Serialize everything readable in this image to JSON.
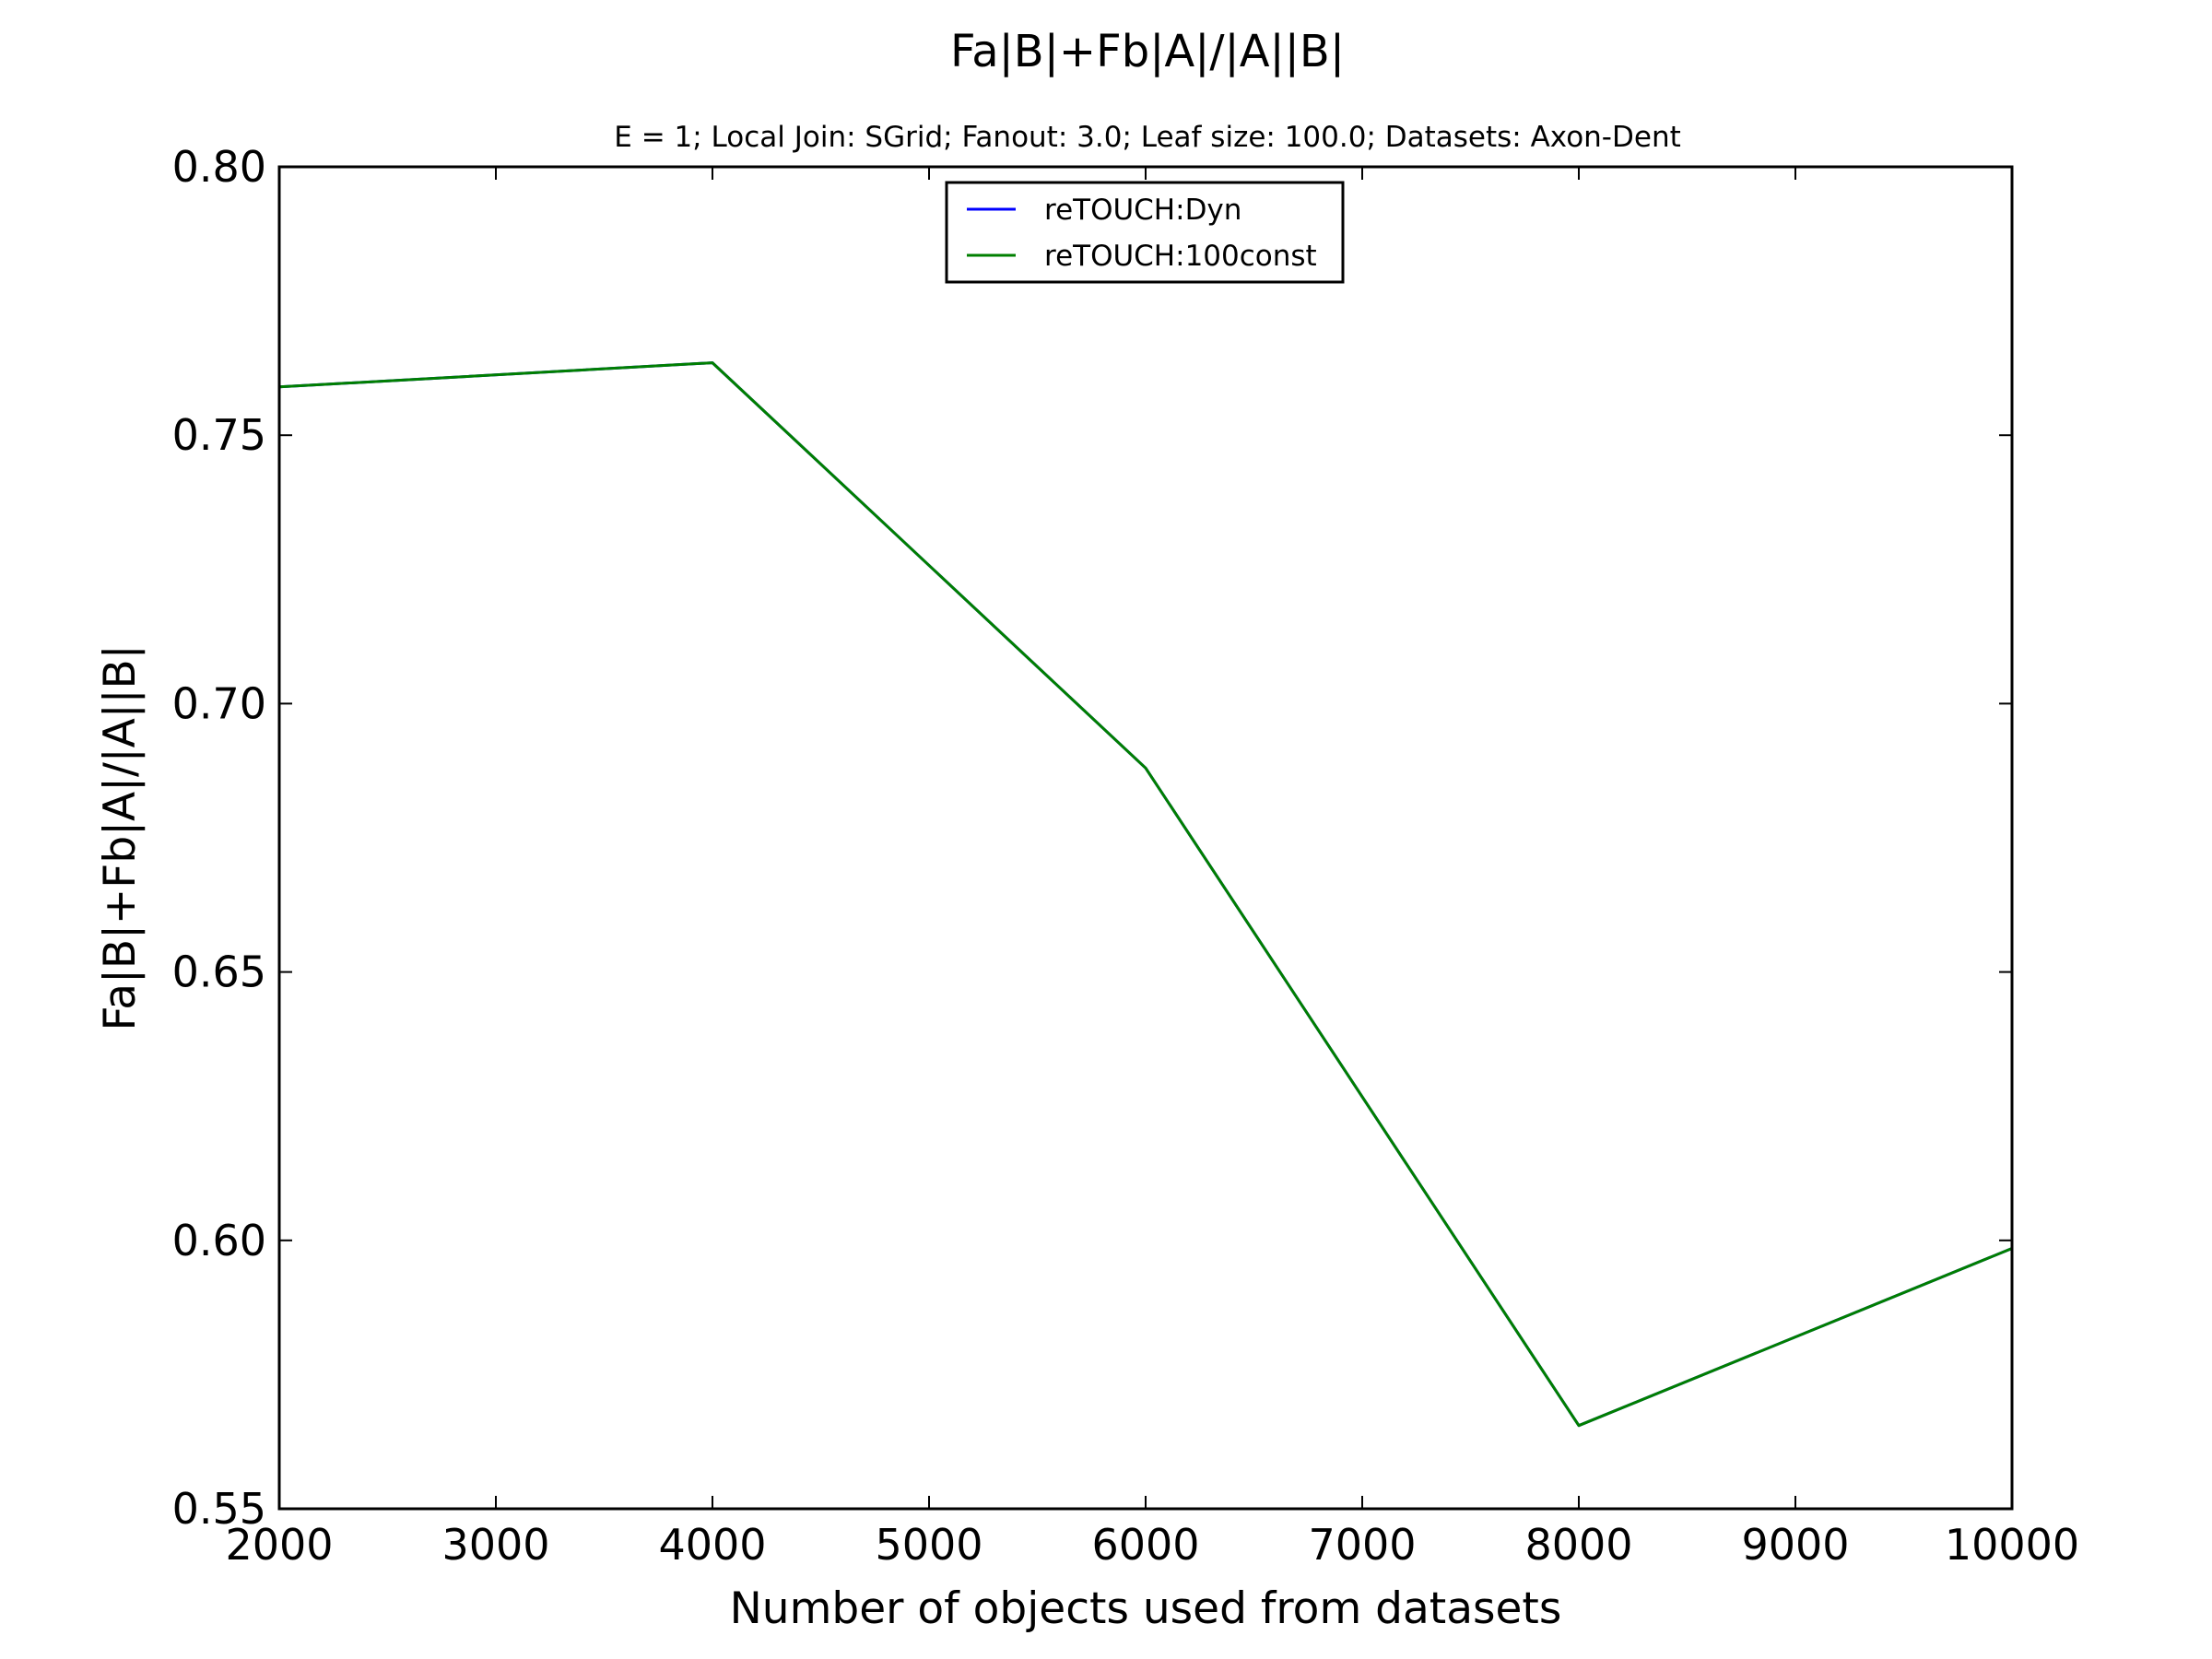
{
  "chart_data": {
    "type": "line",
    "title": "Fa|B|+Fb|A|/|A||B|",
    "subtitle": "E = 1; Local Join: SGrid; Fanout: 3.0; Leaf size: 100.0; Datasets: Axon-Dent",
    "xlabel": "Number of objects used from datasets",
    "ylabel": "Fa|B|+Fb|A|/|A||B|",
    "xlim": [
      2000,
      10000
    ],
    "ylim": [
      0.55,
      0.8
    ],
    "x_ticks": [
      2000,
      3000,
      4000,
      5000,
      6000,
      7000,
      8000,
      9000,
      10000
    ],
    "x_tick_labels": [
      "2000",
      "3000",
      "4000",
      "5000",
      "6000",
      "7000",
      "8000",
      "9000",
      "10000"
    ],
    "y_ticks": [
      0.55,
      0.6,
      0.65,
      0.7,
      0.75,
      0.8
    ],
    "y_tick_labels": [
      "0.55",
      "0.60",
      "0.65",
      "0.70",
      "0.75",
      "0.80"
    ],
    "grid": false,
    "legend_position": "upper-center",
    "x": [
      2000,
      4000,
      6000,
      8000,
      10000
    ],
    "series": [
      {
        "name": "reTOUCH:Dyn",
        "color": "#0000ff",
        "values": [
          0.759,
          0.7635,
          0.688,
          0.5655,
          0.5985
        ]
      },
      {
        "name": "reTOUCH:100const",
        "color": "#007f00",
        "values": [
          0.759,
          0.7635,
          0.688,
          0.5655,
          0.5985
        ]
      }
    ]
  }
}
